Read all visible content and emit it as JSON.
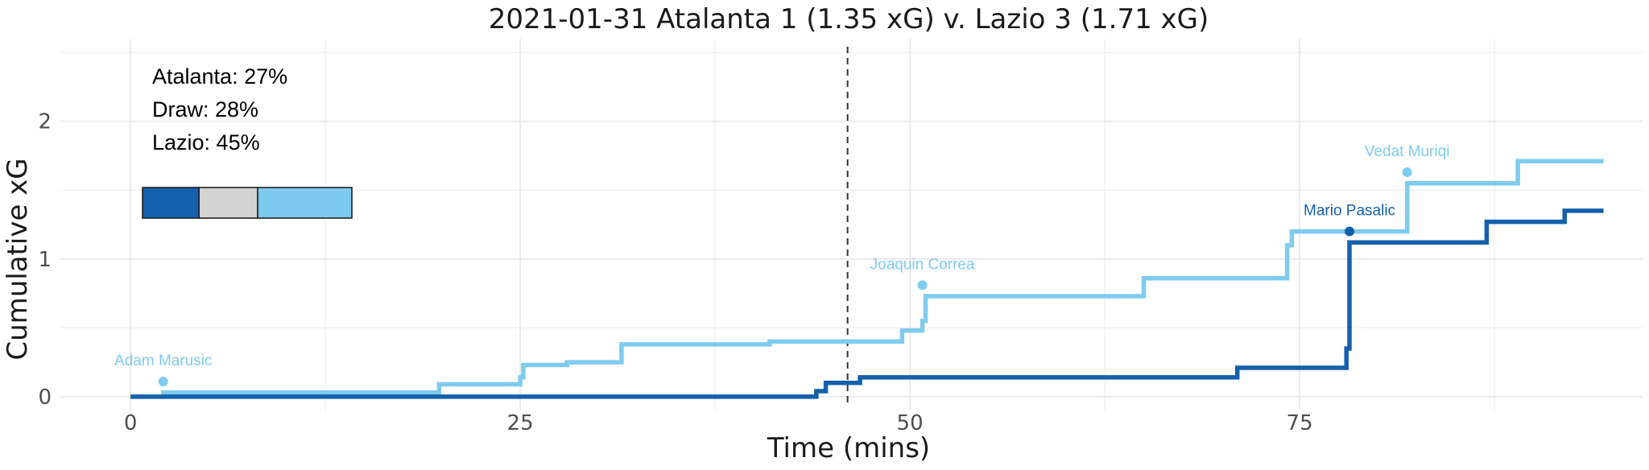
{
  "colors": {
    "home": "#1560ac",
    "away": "#7ecbef",
    "draw": "#d3d3d3",
    "grid": "#e6e6e6",
    "halftime": "#333333"
  },
  "chart_data": {
    "type": "line",
    "title": "2021-01-31 Atalanta 1 (1.35 xG) v. Lazio 3 (1.71 xG)",
    "xlabel": "Time (mins)",
    "ylabel": "Cumulative xG",
    "xlim": [
      -4.5,
      97
    ],
    "ylim": [
      -0.1,
      2.6
    ],
    "xticks": [
      0,
      25,
      50,
      75
    ],
    "yticks": [
      0,
      1,
      2
    ],
    "xtick_labels": [
      "0",
      "25",
      "50",
      "75"
    ],
    "ytick_labels": [
      "0",
      "1",
      "2"
    ],
    "grid": true,
    "halftime_x": 46,
    "series": [
      {
        "name": "Atalanta",
        "color": "#1560ac",
        "points": [
          [
            0,
            0
          ],
          [
            44,
            0
          ],
          [
            44,
            0.04
          ],
          [
            44.6,
            0.04
          ],
          [
            44.6,
            0.1
          ],
          [
            46.8,
            0.1
          ],
          [
            46.8,
            0.14
          ],
          [
            71,
            0.14
          ],
          [
            71,
            0.21
          ],
          [
            78,
            0.21
          ],
          [
            78,
            0.35
          ],
          [
            78.2,
            0.35
          ],
          [
            78.2,
            1.12
          ],
          [
            87,
            1.12
          ],
          [
            87,
            1.27
          ],
          [
            92,
            1.27
          ],
          [
            92,
            1.35
          ],
          [
            94.5,
            1.35
          ]
        ]
      },
      {
        "name": "Lazio",
        "color": "#7ecbef",
        "points": [
          [
            0,
            0
          ],
          [
            2.1,
            0
          ],
          [
            2.1,
            0.03
          ],
          [
            19.8,
            0.03
          ],
          [
            19.8,
            0.09
          ],
          [
            25,
            0.09
          ],
          [
            25,
            0.14
          ],
          [
            25.2,
            0.14
          ],
          [
            25.2,
            0.23
          ],
          [
            28,
            0.23
          ],
          [
            28,
            0.25
          ],
          [
            31.5,
            0.25
          ],
          [
            31.5,
            0.38
          ],
          [
            41,
            0.38
          ],
          [
            41,
            0.4
          ],
          [
            49.5,
            0.4
          ],
          [
            49.5,
            0.48
          ],
          [
            50.8,
            0.48
          ],
          [
            50.8,
            0.55
          ],
          [
            51,
            0.55
          ],
          [
            51,
            0.73
          ],
          [
            65,
            0.73
          ],
          [
            65,
            0.86
          ],
          [
            74.2,
            0.86
          ],
          [
            74.2,
            1.1
          ],
          [
            74.5,
            1.1
          ],
          [
            74.5,
            1.2
          ],
          [
            81.9,
            1.2
          ],
          [
            81.9,
            1.55
          ],
          [
            89,
            1.55
          ],
          [
            89,
            1.71
          ],
          [
            94.5,
            1.71
          ]
        ]
      }
    ],
    "goals": [
      {
        "label": "Adam Marusic",
        "team": "Lazio",
        "x": 2.1,
        "y": 0.11
      },
      {
        "label": "Joaquin Correa",
        "team": "Lazio",
        "x": 50.8,
        "y": 0.81
      },
      {
        "label": "Mario Pasalic",
        "team": "Atalanta",
        "x": 78.2,
        "y": 1.2
      },
      {
        "label": "Vedat Muriqi",
        "team": "Lazio",
        "x": 81.9,
        "y": 1.63
      }
    ],
    "probabilities": [
      {
        "label": "Atalanta: 27%",
        "team": "Atalanta",
        "value": 0.27
      },
      {
        "label": "Draw: 28%",
        "team": "Draw",
        "value": 0.28
      },
      {
        "label": "Lazio: 45%",
        "team": "Lazio",
        "value": 0.45
      }
    ]
  }
}
